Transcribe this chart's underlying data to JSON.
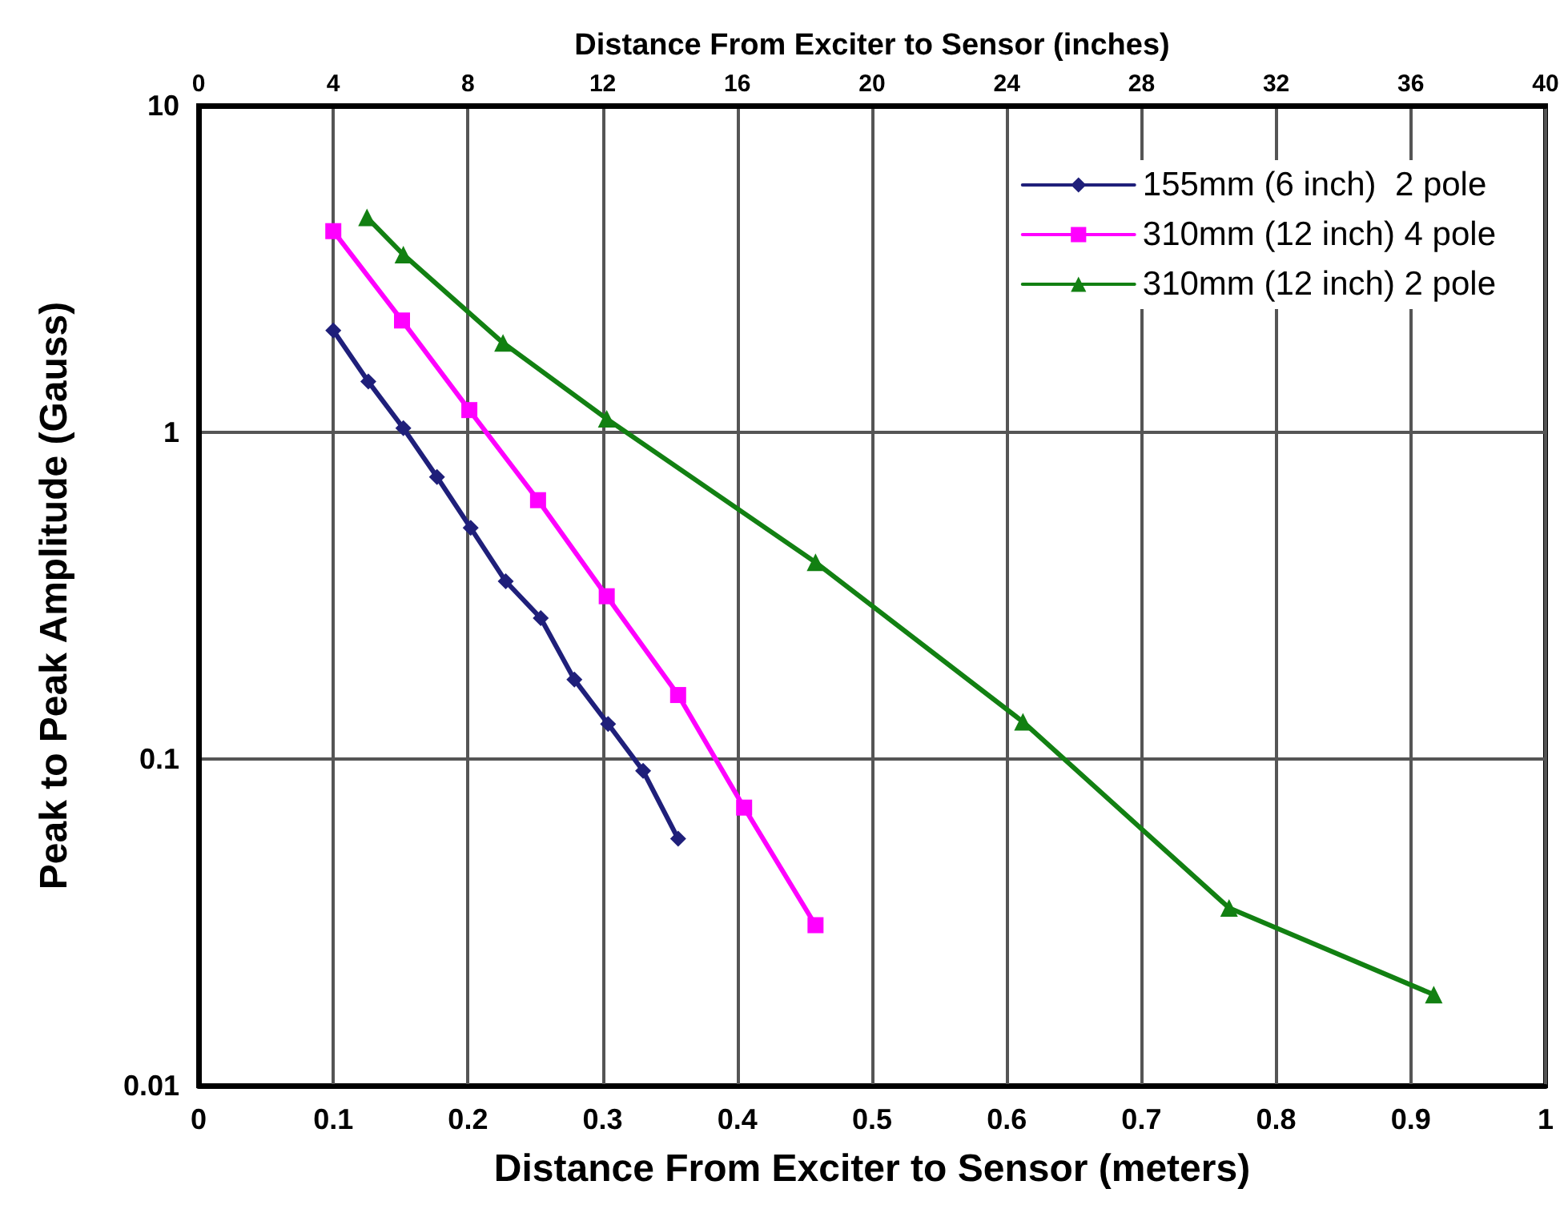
{
  "chart_data": {
    "type": "line",
    "xlabel": "Distance From Exciter to Sensor (meters)",
    "x2label": "Distance From Exciter to Sensor (inches)",
    "ylabel": "Peak to Peak Amplitude (Gauss)",
    "series": [
      {
        "name": "155mm (6 inch)  2 pole",
        "color": "#1f1f7a",
        "marker": "diamond",
        "x": [
          0.1,
          0.126,
          0.152,
          0.177,
          0.202,
          0.228,
          0.254,
          0.279,
          0.304,
          0.33,
          0.356
        ],
        "values": [
          2.05,
          1.43,
          1.03,
          0.73,
          0.51,
          0.35,
          0.27,
          0.175,
          0.128,
          0.092,
          0.057
        ]
      },
      {
        "name": "310mm (12 inch) 4 pole",
        "color": "#ff00ff",
        "marker": "square",
        "x": [
          0.1,
          0.151,
          0.201,
          0.252,
          0.303,
          0.356,
          0.405,
          0.458
        ],
        "values": [
          4.13,
          2.2,
          1.17,
          0.62,
          0.315,
          0.157,
          0.071,
          0.031
        ]
      },
      {
        "name": "310mm (12 inch) 2 pole",
        "color": "#128012",
        "marker": "triangle",
        "x": [
          0.125,
          0.152,
          0.226,
          0.303,
          0.458,
          0.612,
          0.765,
          0.917
        ],
        "values": [
          4.55,
          3.5,
          1.88,
          1.1,
          0.4,
          0.13,
          0.035,
          0.019
        ]
      }
    ],
    "xlim": [
      0,
      1
    ],
    "xticks": [
      0,
      0.1,
      0.2,
      0.3,
      0.4,
      0.5,
      0.6,
      0.7,
      0.8,
      0.9,
      1
    ],
    "x2lim": [
      0,
      40
    ],
    "x2ticks": [
      0,
      4,
      8,
      12,
      16,
      20,
      24,
      28,
      32,
      36,
      40
    ],
    "ylim": [
      0.01,
      10
    ],
    "yticks": [
      0.01,
      0.1,
      1,
      10
    ],
    "log": "y",
    "grid": true,
    "legend": "top right",
    "line_style": "solid"
  }
}
